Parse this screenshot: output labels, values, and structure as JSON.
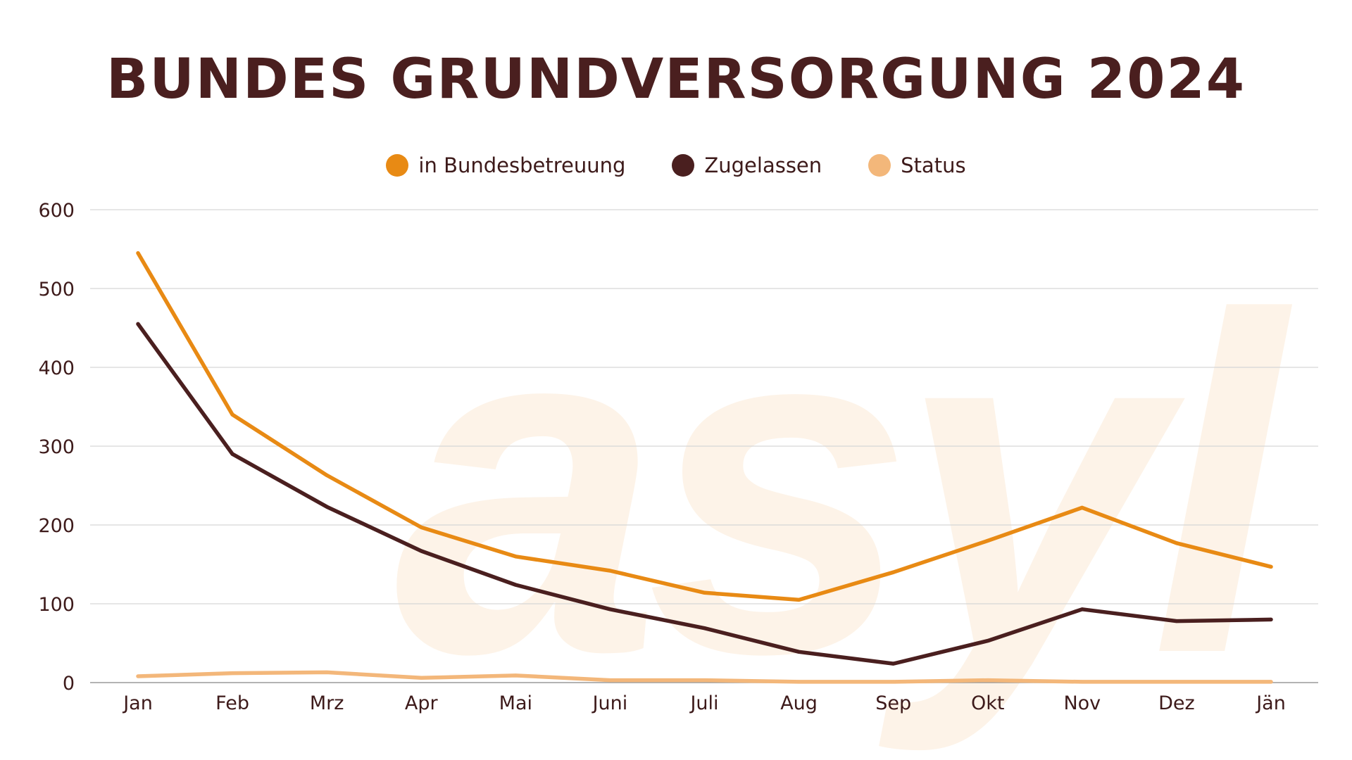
{
  "chart_data": {
    "type": "line",
    "title": "BUNDES GRUNDVERSORGUNG 2024",
    "watermark": "asyl",
    "categories": [
      "Jan",
      "Feb",
      "Mrz",
      "Apr",
      "Mai",
      "Juni",
      "Juli",
      "Aug",
      "Sep",
      "Okt",
      "Nov",
      "Dez",
      "Jän"
    ],
    "series": [
      {
        "name": "in Bundesbetreuung",
        "color": "#e88a14",
        "values": [
          545,
          340,
          263,
          197,
          160,
          142,
          114,
          105,
          140,
          180,
          222,
          177,
          147
        ]
      },
      {
        "name": "Zugelassen",
        "color": "#4a1f1f",
        "values": [
          455,
          290,
          223,
          167,
          124,
          93,
          69,
          39,
          24,
          53,
          93,
          78,
          80
        ]
      },
      {
        "name": "Status",
        "color": "#f3b77a",
        "values": [
          8,
          12,
          13,
          6,
          9,
          3,
          3,
          1,
          1,
          3,
          1,
          1,
          1
        ]
      }
    ],
    "yticks": [
      0,
      100,
      200,
      300,
      400,
      500,
      600
    ],
    "ylim": [
      0,
      600
    ],
    "xlabel": "",
    "ylabel": "",
    "grid": true,
    "legend_position": "top-center"
  }
}
